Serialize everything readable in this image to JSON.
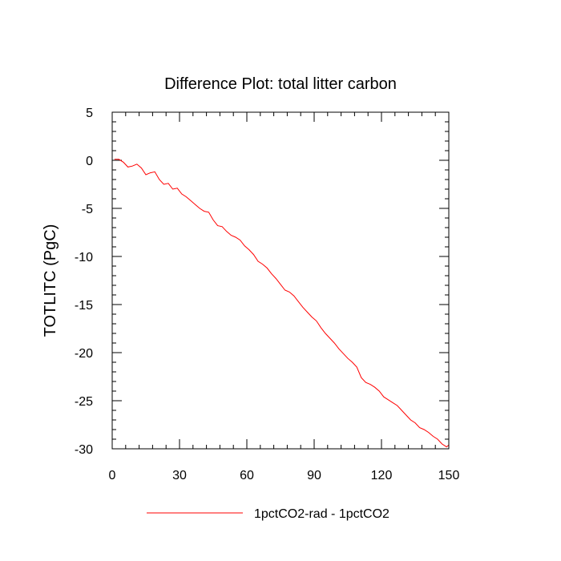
{
  "chart_data": {
    "type": "line",
    "title": "Difference Plot: total litter carbon",
    "ylabel": "TOTLITC  (PgC)",
    "xlabel": "",
    "xlim": [
      0,
      150
    ],
    "ylim": [
      -30,
      5
    ],
    "xticks": [
      0,
      30,
      60,
      90,
      120,
      150
    ],
    "xtick_labels": [
      "0",
      "30",
      "60",
      "90",
      "120",
      "150"
    ],
    "yticks": [
      5,
      0,
      -5,
      -10,
      -15,
      -20,
      -25,
      -30
    ],
    "ytick_labels": [
      "5",
      "0",
      "-5",
      "-10",
      "-15",
      "-20",
      "-25",
      "-30"
    ],
    "grid": false,
    "legend_position": "bottom-center",
    "series": [
      {
        "name": "1pctCO2-rad - 1pctCO2",
        "color": "#ff0000",
        "x": [
          1,
          3,
          5,
          7,
          9,
          11,
          13,
          15,
          17,
          19,
          21,
          23,
          25,
          27,
          29,
          31,
          33,
          35,
          37,
          39,
          41,
          43,
          45,
          47,
          49,
          51,
          53,
          55,
          57,
          59,
          61,
          63,
          65,
          67,
          69,
          71,
          73,
          75,
          77,
          79,
          81,
          83,
          85,
          87,
          89,
          91,
          93,
          95,
          97,
          99,
          101,
          103,
          105,
          107,
          109,
          111,
          113,
          115,
          117,
          119,
          121,
          123,
          125,
          127,
          129,
          131,
          133,
          135,
          137,
          139,
          141,
          143,
          145,
          147,
          149,
          150
        ],
        "values": [
          0.1,
          0.1,
          -0.2,
          -0.7,
          -0.6,
          -0.4,
          -0.8,
          -1.5,
          -1.3,
          -1.2,
          -2.0,
          -2.5,
          -2.4,
          -3.0,
          -2.9,
          -3.5,
          -3.8,
          -4.2,
          -4.6,
          -5.0,
          -5.3,
          -5.4,
          -6.2,
          -6.8,
          -6.9,
          -7.4,
          -7.8,
          -8.0,
          -8.3,
          -8.9,
          -9.3,
          -9.8,
          -10.5,
          -10.8,
          -11.2,
          -11.8,
          -12.3,
          -12.9,
          -13.5,
          -13.7,
          -14.1,
          -14.7,
          -15.3,
          -15.8,
          -16.3,
          -16.7,
          -17.4,
          -18.0,
          -18.5,
          -19.0,
          -19.6,
          -20.1,
          -20.6,
          -21.0,
          -21.5,
          -22.6,
          -23.1,
          -23.3,
          -23.6,
          -24.0,
          -24.6,
          -24.9,
          -25.2,
          -25.5,
          -26.0,
          -26.5,
          -27.0,
          -27.3,
          -27.8,
          -28.0,
          -28.3,
          -28.7,
          -29.0,
          -29.5,
          -29.8,
          -29.6
        ]
      }
    ]
  }
}
